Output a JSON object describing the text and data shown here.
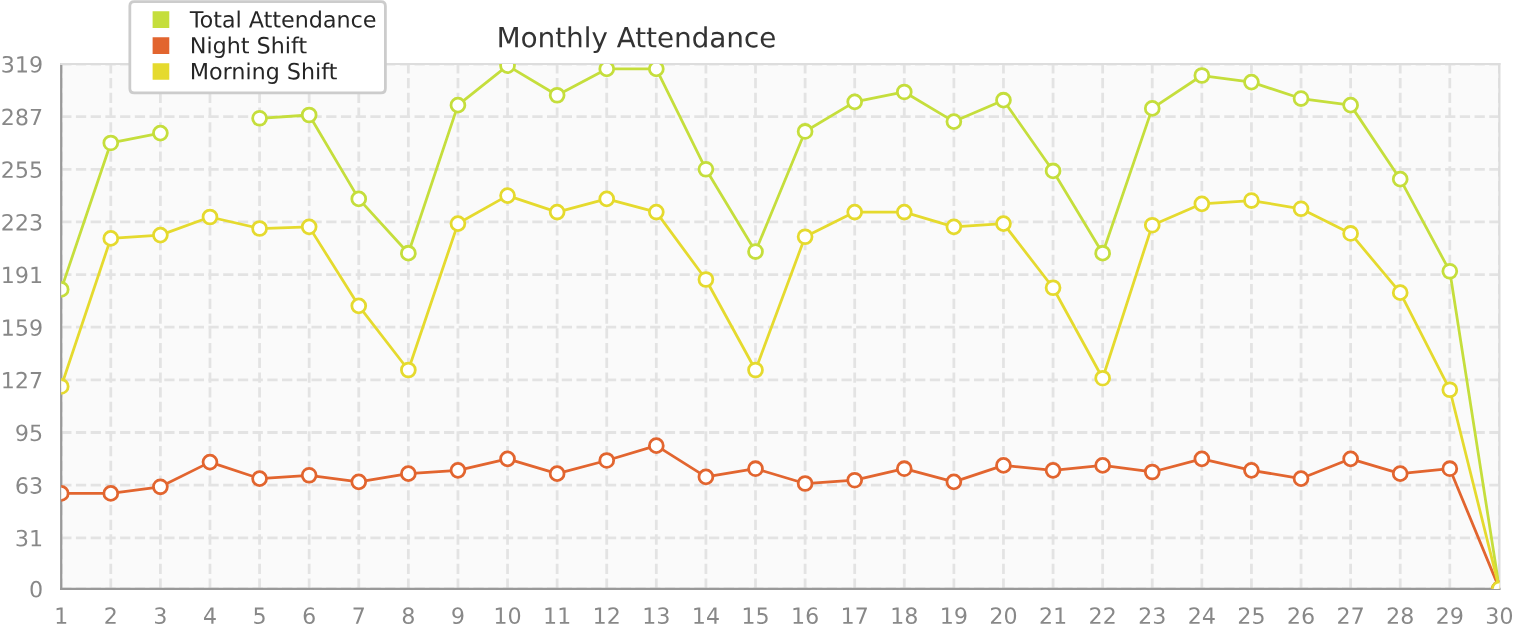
{
  "chart_data": {
    "type": "line",
    "title": "Monthly Attendance",
    "x": [
      1,
      2,
      3,
      4,
      5,
      6,
      7,
      8,
      9,
      10,
      11,
      12,
      13,
      14,
      15,
      16,
      17,
      18,
      19,
      20,
      21,
      22,
      23,
      24,
      25,
      26,
      27,
      28,
      29,
      30
    ],
    "series": [
      {
        "name": "Total Attendance",
        "color": "#c5de3c",
        "values": [
          182,
          271,
          277,
          null,
          286,
          288,
          237,
          204,
          294,
          318,
          300,
          316,
          316,
          255,
          205,
          278,
          296,
          302,
          284,
          297,
          254,
          204,
          292,
          312,
          308,
          298,
          294,
          249,
          193,
          0
        ]
      },
      {
        "name": "Night Shift",
        "color": "#e2652f",
        "values": [
          58,
          58,
          62,
          77,
          67,
          69,
          65,
          70,
          72,
          79,
          70,
          78,
          87,
          68,
          73,
          64,
          66,
          73,
          65,
          75,
          72,
          75,
          71,
          79,
          72,
          67,
          79,
          70,
          73,
          0
        ]
      },
      {
        "name": "Morning Shift",
        "color": "#e5da2e",
        "values": [
          123,
          213,
          215,
          226,
          219,
          220,
          172,
          133,
          222,
          239,
          229,
          237,
          229,
          188,
          133,
          214,
          229,
          229,
          220,
          222,
          183,
          128,
          221,
          234,
          236,
          231,
          216,
          180,
          121,
          0
        ]
      }
    ],
    "xlim": [
      1,
      30
    ],
    "xticks": [
      1,
      2,
      3,
      4,
      5,
      6,
      7,
      8,
      9,
      10,
      11,
      12,
      13,
      14,
      15,
      16,
      17,
      18,
      19,
      20,
      21,
      22,
      23,
      24,
      25,
      26,
      27,
      28,
      29,
      30
    ],
    "ylim": [
      0,
      319
    ],
    "yticks": [
      0,
      31,
      63,
      95,
      127,
      159,
      191,
      223,
      255,
      287,
      319
    ],
    "grid": true,
    "legend": "top left",
    "marker": "circle",
    "line_style": "solid"
  }
}
